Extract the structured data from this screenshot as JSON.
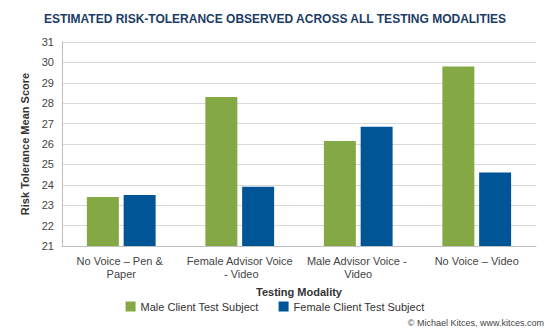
{
  "chart_data": {
    "type": "bar",
    "title": "ESTIMATED RISK-TOLERANCE OBSERVED ACROSS ALL TESTING MODALITIES",
    "x_label": "Testing Modality",
    "y_label": "Risk Tolerance Mean Score",
    "categories": [
      "No Voice – Pen & Paper",
      "Female Advisor Voice - Video",
      "Male Advisor Voice - Video",
      "No Voice – Video"
    ],
    "series": [
      {
        "name": "Male Client Test Subject",
        "color": "#84a843",
        "values": [
          23.4,
          28.3,
          26.15,
          29.8
        ]
      },
      {
        "name": "Female Client Test Subject",
        "color": "#005596",
        "values": [
          23.5,
          23.9,
          26.85,
          24.6
        ]
      }
    ],
    "ylim": [
      21,
      31
    ],
    "yticks": [
      21,
      22,
      23,
      24,
      25,
      26,
      27,
      28,
      29,
      30,
      31
    ],
    "grid": true,
    "legend": "bottom",
    "annotations": [
      "© Michael Kitces, www.kitces.com"
    ]
  }
}
